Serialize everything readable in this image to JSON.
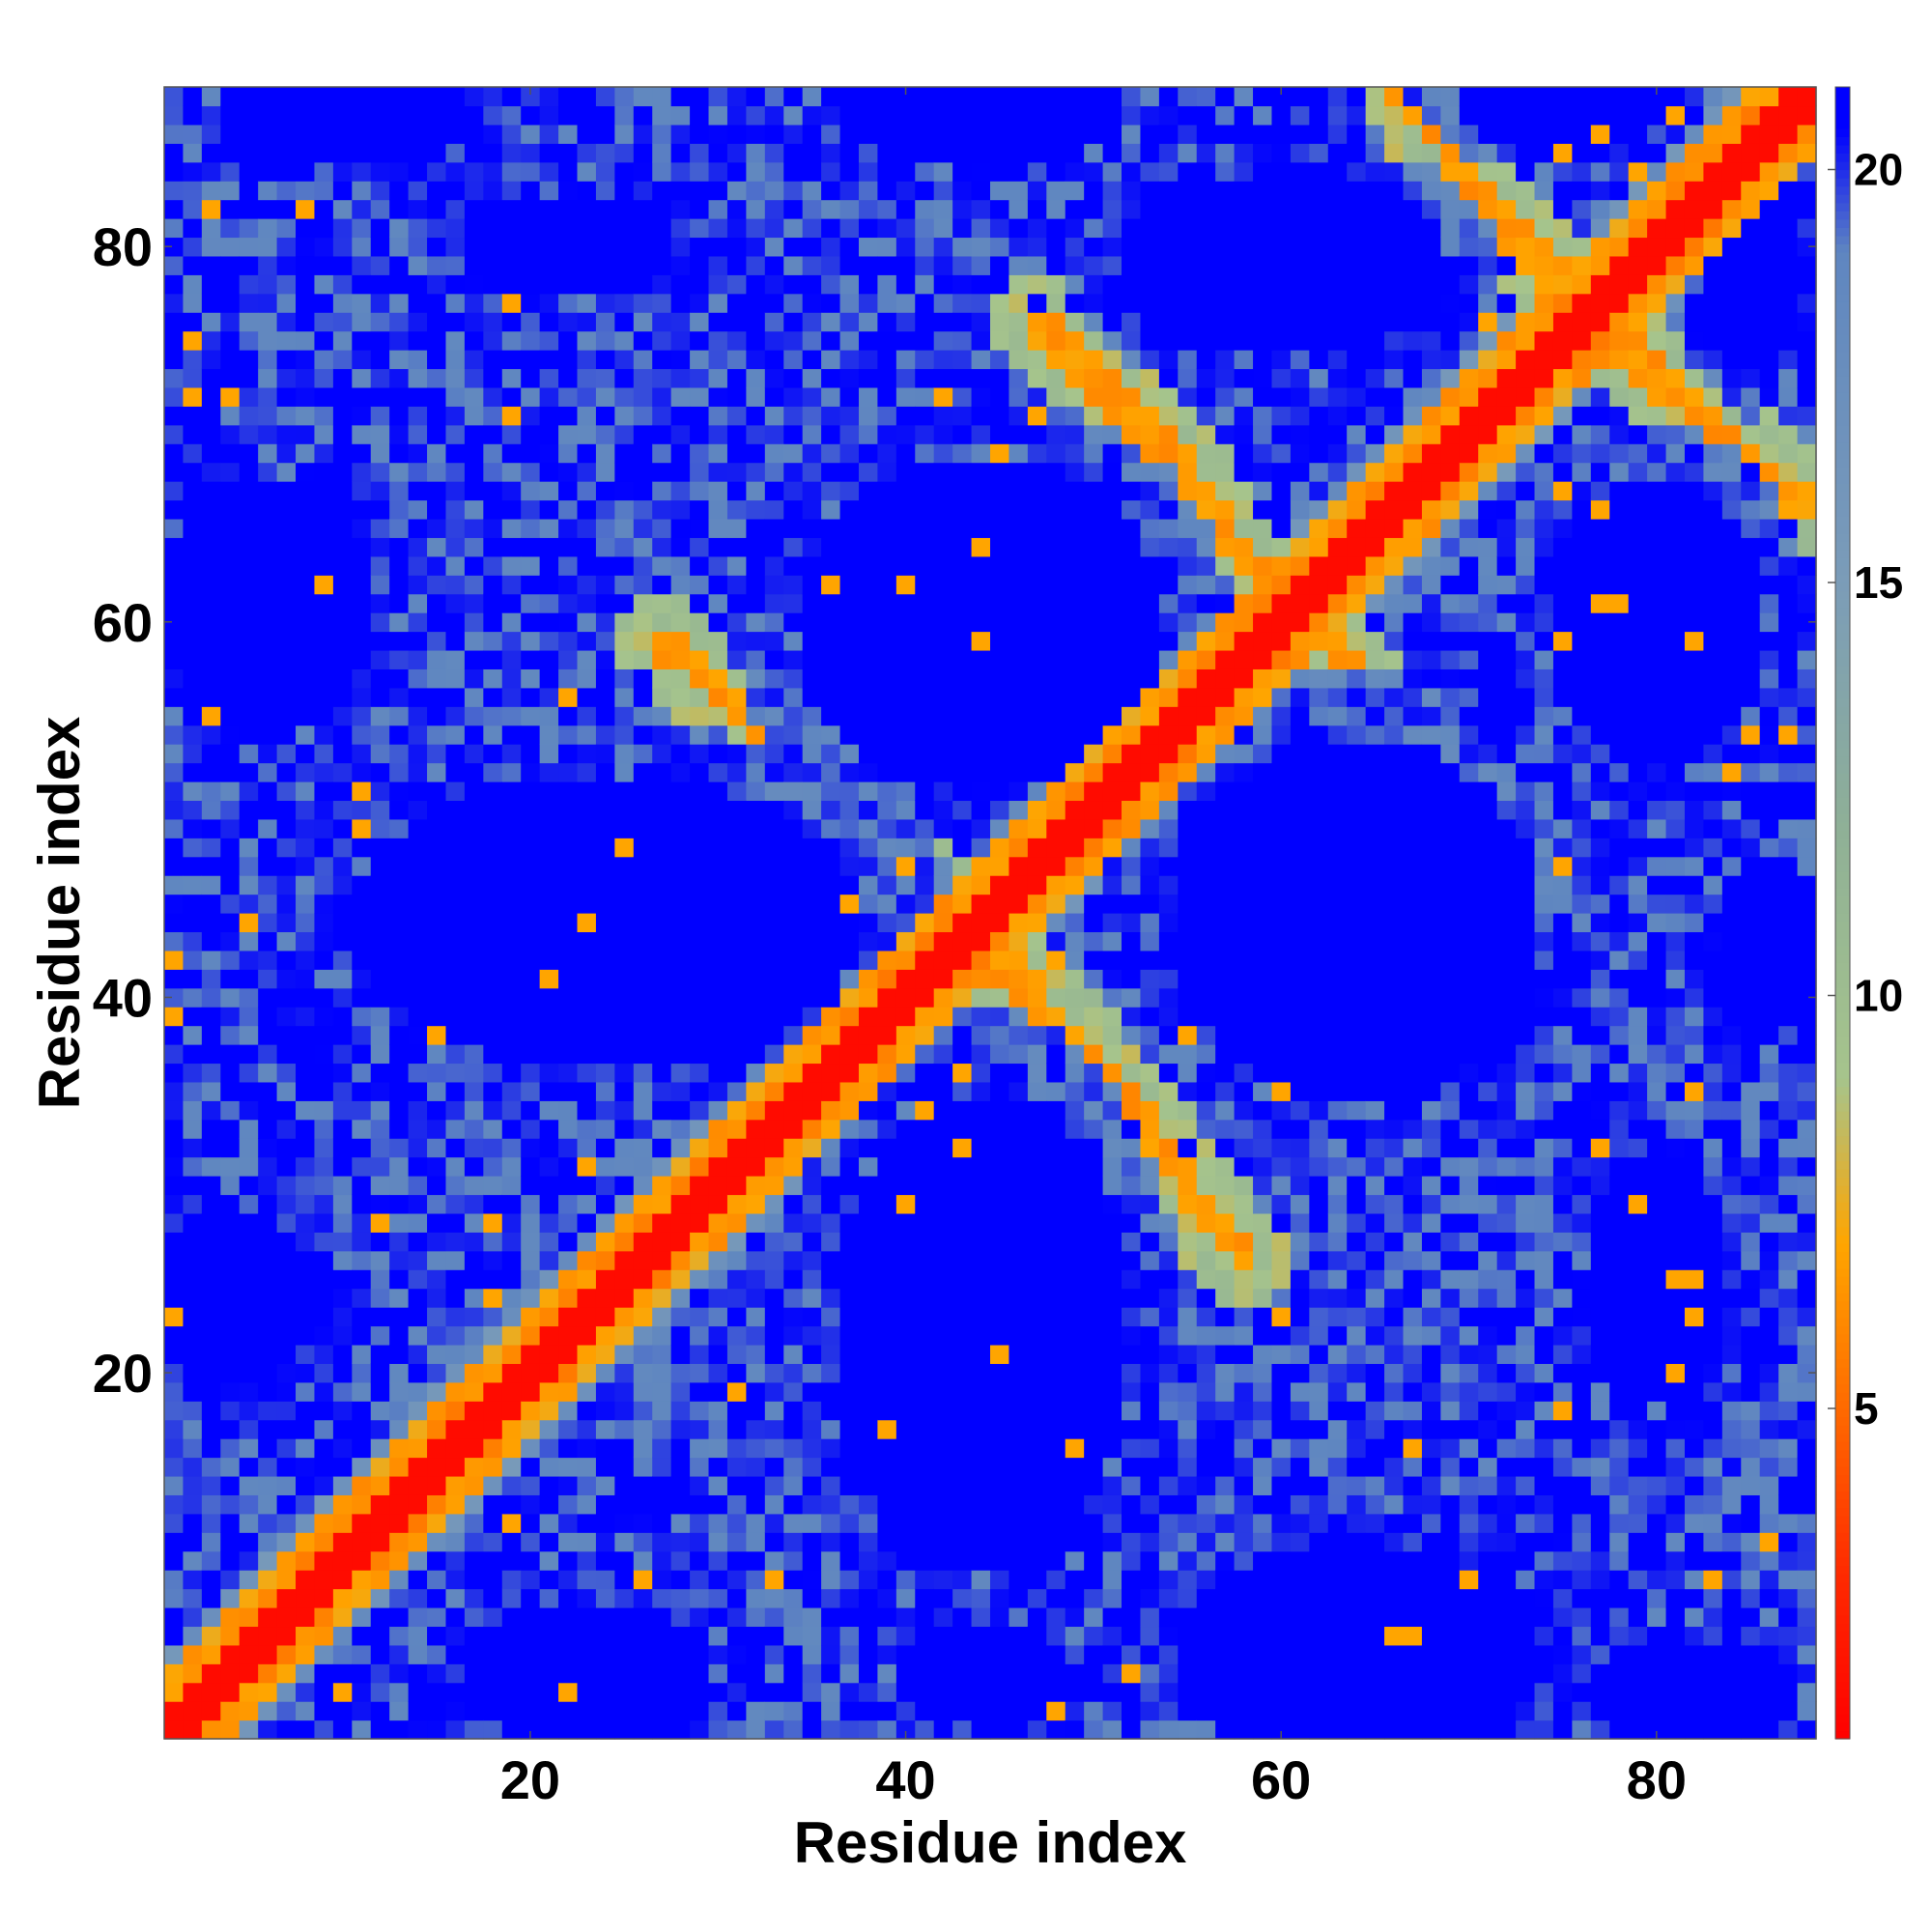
{
  "chart_data": {
    "type": "heatmap",
    "title": "",
    "xlabel": "Residue index",
    "ylabel": "Residue index",
    "xlim": [
      1,
      88
    ],
    "ylim": [
      1,
      88
    ],
    "x_ticks": [
      20,
      40,
      60,
      80
    ],
    "y_ticks": [
      20,
      40,
      60,
      80
    ],
    "x_tick_labels": [
      "20",
      "40",
      "60",
      "80"
    ],
    "y_tick_labels": [
      "20",
      "40",
      "60",
      "80"
    ],
    "n_residues": 88,
    "grid": false,
    "colorbar": {
      "ticks": [
        5,
        10,
        15,
        20
      ],
      "tick_labels": [
        "5",
        "10",
        "15",
        "20"
      ],
      "range": [
        1,
        21
      ],
      "stops": [
        {
          "value": 1,
          "color": "#ff0000"
        },
        {
          "value": 3,
          "color": "#ff2a00"
        },
        {
          "value": 5,
          "color": "#ff6a00"
        },
        {
          "value": 7,
          "color": "#ffa500"
        },
        {
          "value": 9,
          "color": "#a6c48c"
        },
        {
          "value": 12,
          "color": "#8fb096"
        },
        {
          "value": 15,
          "color": "#7b9cb8"
        },
        {
          "value": 19,
          "color": "#5f86c0"
        },
        {
          "value": 20.5,
          "color": "#0000ff"
        }
      ]
    },
    "diagonal_value": 1.5,
    "contact_bands": [
      {
        "name": "anti-diagonal 1",
        "points": [
          [
            27,
            59
          ],
          [
            35,
            52
          ],
          [
            43,
            44
          ],
          [
            46,
            41
          ],
          [
            52,
            34
          ],
          [
            58,
            26
          ]
        ],
        "value": 6.5
      },
      {
        "name": "anti-diagonal 2",
        "points": [
          [
            47,
            76
          ],
          [
            55,
            68
          ],
          [
            58,
            63
          ],
          [
            61,
            61
          ],
          [
            63,
            58
          ],
          [
            69,
            52
          ],
          [
            75,
            46
          ]
        ],
        "value": 6.5
      },
      {
        "name": "anti-diagonal 3",
        "points": [
          [
            66,
            89
          ],
          [
            72,
            81
          ],
          [
            76,
            77
          ],
          [
            80,
            73
          ],
          [
            88,
            66
          ]
        ],
        "value": 6.5
      }
    ],
    "far_regions": [
      {
        "center": [
          22,
          80
        ],
        "radius": [
          6,
          3
        ]
      },
      {
        "center": [
          60,
          79
        ],
        "radius": [
          9,
          5
        ]
      },
      {
        "center": [
          85,
          79
        ],
        "radius": [
          3,
          6
        ]
      },
      {
        "center": [
          44,
          60
        ],
        "radius": [
          10,
          9
        ]
      },
      {
        "center": [
          80,
          60
        ],
        "radius": [
          6,
          8
        ]
      },
      {
        "center": [
          6,
          61
        ],
        "radius": [
          6,
          7
        ]
      },
      {
        "center": [
          24,
          44
        ],
        "radius": [
          14,
          8
        ]
      },
      {
        "center": [
          64,
          44
        ],
        "radius": [
          10,
          10
        ]
      },
      {
        "center": [
          86,
          43
        ],
        "radius": [
          3,
          5
        ]
      },
      {
        "center": [
          44,
          22
        ],
        "radius": [
          8,
          13
        ]
      },
      {
        "center": [
          80,
          25
        ],
        "radius": [
          4,
          7
        ]
      },
      {
        "center": [
          4,
          24
        ],
        "radius": [
          5,
          5
        ]
      },
      {
        "center": [
          64,
          5
        ],
        "radius": [
          10,
          6
        ]
      },
      {
        "center": [
          23,
          4
        ],
        "radius": [
          7,
          4
        ]
      },
      {
        "center": [
          44,
          4
        ],
        "radius": [
          5,
          3
        ]
      },
      {
        "center": [
          82,
          3
        ],
        "radius": [
          6,
          3
        ]
      },
      {
        "center": [
          75,
          88
        ],
        "radius": [
          6,
          3
        ]
      },
      {
        "center": [
          44,
          88
        ],
        "radius": [
          8,
          4
        ]
      },
      {
        "center": [
          10,
          87
        ],
        "radius": [
          7,
          3
        ]
      }
    ]
  }
}
